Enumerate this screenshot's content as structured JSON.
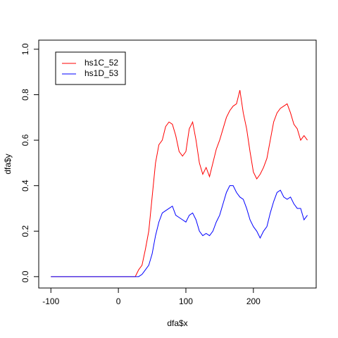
{
  "chart_data": {
    "type": "line",
    "xlabel": "dfa$x",
    "ylabel": "dfa$y",
    "x": [
      -100,
      25,
      30,
      35,
      40,
      45,
      50,
      55,
      60,
      65,
      70,
      75,
      80,
      85,
      90,
      95,
      100,
      105,
      110,
      115,
      120,
      125,
      130,
      135,
      140,
      145,
      150,
      155,
      160,
      165,
      170,
      175,
      180,
      185,
      190,
      195,
      200,
      205,
      210,
      215,
      220,
      225,
      230,
      235,
      240,
      245,
      250,
      255,
      260,
      265,
      270,
      275,
      280
    ],
    "series": [
      {
        "name": "hs1C_52",
        "color": "#ff0000",
        "values": [
          0,
          0,
          0.03,
          0.05,
          0.12,
          0.2,
          0.35,
          0.5,
          0.58,
          0.6,
          0.66,
          0.68,
          0.67,
          0.62,
          0.55,
          0.53,
          0.55,
          0.65,
          0.68,
          0.6,
          0.5,
          0.45,
          0.48,
          0.44,
          0.5,
          0.56,
          0.6,
          0.65,
          0.7,
          0.73,
          0.75,
          0.76,
          0.82,
          0.72,
          0.65,
          0.55,
          0.46,
          0.43,
          0.45,
          0.48,
          0.52,
          0.6,
          0.68,
          0.72,
          0.74,
          0.75,
          0.76,
          0.72,
          0.67,
          0.65,
          0.6,
          0.62,
          0.6
        ]
      },
      {
        "name": "hs1D_53",
        "color": "#0000ff",
        "values": [
          0,
          0,
          0,
          0.01,
          0.03,
          0.05,
          0.1,
          0.18,
          0.24,
          0.28,
          0.29,
          0.3,
          0.31,
          0.27,
          0.26,
          0.25,
          0.24,
          0.27,
          0.28,
          0.25,
          0.2,
          0.18,
          0.19,
          0.18,
          0.2,
          0.24,
          0.27,
          0.32,
          0.37,
          0.4,
          0.4,
          0.37,
          0.35,
          0.34,
          0.3,
          0.25,
          0.22,
          0.2,
          0.17,
          0.2,
          0.22,
          0.28,
          0.33,
          0.37,
          0.38,
          0.35,
          0.34,
          0.35,
          0.32,
          0.3,
          0.3,
          0.25,
          0.27
        ]
      }
    ],
    "xlim": [
      -118,
      293
    ],
    "ylim": [
      -0.05,
      1.04
    ],
    "xticks": [
      -100,
      0,
      100,
      200
    ],
    "yticks": [
      {
        "value": 0,
        "label": "0.0"
      },
      {
        "value": 0.2,
        "label": "0.2"
      },
      {
        "value": 0.4,
        "label": "0.4"
      },
      {
        "value": 0.6,
        "label": "0.6"
      },
      {
        "value": 0.8,
        "label": "0.8"
      },
      {
        "value": 1,
        "label": "1.0"
      }
    ],
    "legend": "top-left"
  }
}
